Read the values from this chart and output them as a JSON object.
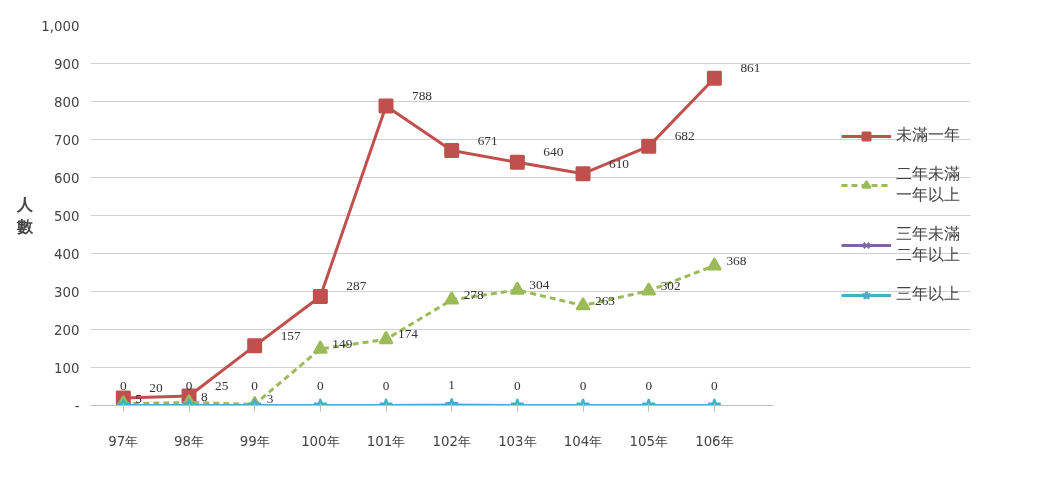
{
  "chart_data": {
    "type": "line",
    "ylabel": "人數",
    "categories": [
      "97年",
      "98年",
      "99年",
      "100年",
      "101年",
      "102年",
      "103年",
      "104年",
      "105年",
      "106年"
    ],
    "ylim": [
      0,
      1000
    ],
    "yticks": [
      {
        "value": 0,
        "label": "-"
      },
      100,
      200,
      300,
      400,
      500,
      600,
      700,
      800,
      900,
      {
        "value": 1000,
        "label": "1,000"
      }
    ],
    "grid": "y",
    "legend": "right",
    "series": [
      {
        "name": "未滿一年",
        "color": "#c0504d",
        "marker": "square",
        "line_style": "solid",
        "values": [
          20,
          25,
          157,
          287,
          788,
          671,
          640,
          610,
          682,
          861
        ],
        "value_labels": [
          "20",
          "25",
          "157",
          "287",
          "788",
          "671",
          "640",
          "610",
          "682",
          "861"
        ]
      },
      {
        "name": "二年未滿一年以上",
        "color": "#9bbb59",
        "marker": "triangle",
        "line_style": "dashed",
        "values": [
          5,
          8,
          3,
          149,
          174,
          278,
          304,
          263,
          302,
          368
        ],
        "value_labels": [
          "5",
          "8",
          "3",
          "149",
          "174",
          "278",
          "304",
          "263",
          "302",
          "368"
        ]
      },
      {
        "name": "三年未滿二年以上",
        "color": "#8064a2",
        "marker": "cross",
        "line_style": "solid",
        "values": [
          null,
          null,
          null,
          null,
          null,
          null,
          null,
          null,
          null,
          null
        ]
      },
      {
        "name": "三年以上",
        "color": "#4bacc6",
        "marker": "star",
        "line_style": "solid",
        "values": [
          0,
          0,
          0,
          0,
          0,
          1,
          0,
          0,
          0,
          0
        ],
        "value_labels": [
          "0",
          "0",
          "0",
          "0",
          "0",
          "1",
          "0",
          "0",
          "0",
          "0"
        ]
      }
    ]
  }
}
